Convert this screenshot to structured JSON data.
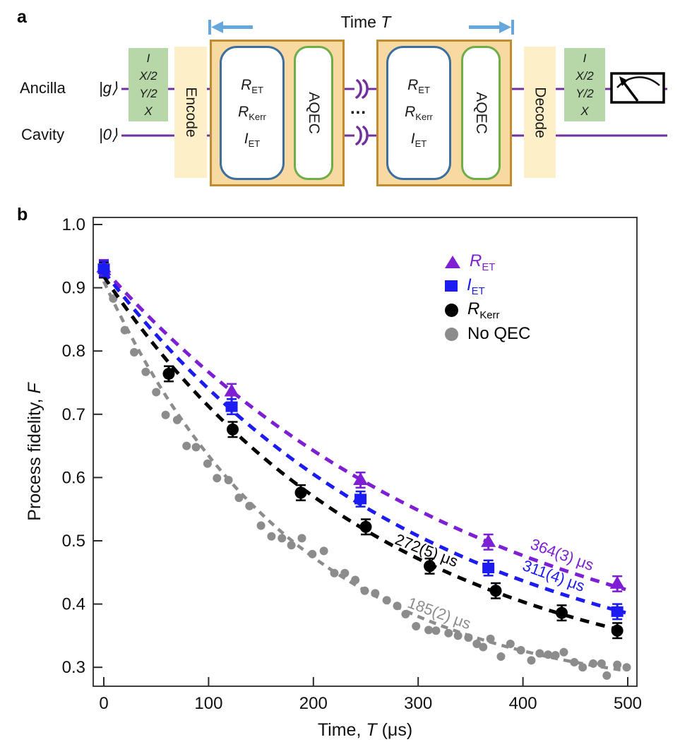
{
  "figure": {
    "panel_a_label": "a",
    "panel_b_label": "b"
  },
  "panel_a": {
    "rows": [
      {
        "label": "Ancilla",
        "ket": "|g⟩"
      },
      {
        "label": "Cavity",
        "ket": "|0⟩"
      }
    ],
    "tomo_gates": [
      "I",
      "X/2",
      "Y/2",
      "X"
    ],
    "encode_label": "Encode",
    "decode_label": "Decode",
    "module": {
      "gates": [
        {
          "main": "R",
          "sub": "ET"
        },
        {
          "main": "R",
          "sub": "Kerr"
        },
        {
          "main": "I",
          "sub": "ET"
        }
      ],
      "aqec_label": "AQEC"
    },
    "time_arrow": {
      "prefix": "Time",
      "symbol": "T"
    },
    "ellipsis": "...",
    "colors": {
      "wire": "#7030a0",
      "tomo_box": "#b7d7a8",
      "band_box": "#fdf0c9",
      "module_fill": "#f8d9a2",
      "module_border": "#bf8c2f",
      "gate_border": "#3c6e9e",
      "aqec_border": "#6fad47",
      "arrow": "#68a7dc"
    }
  },
  "chart_data": {
    "type": "scatter",
    "title": "",
    "xlabel": {
      "prefix": "Time, ",
      "symbol": "T",
      "unit": " (μs)"
    },
    "ylabel": {
      "prefix": "Process fidelity, ",
      "symbol": "F"
    },
    "xlim": [
      -10,
      509
    ],
    "ylim": [
      0.27,
      1.01
    ],
    "x_ticks": [
      0,
      100,
      200,
      300,
      400,
      500
    ],
    "y_ticks": [
      "1.0",
      "0.9",
      "0.8",
      "0.7",
      "0.6",
      "0.5",
      "0.4",
      "0.3"
    ],
    "grid": false,
    "legend_position": "upper-right-inside",
    "series": [
      {
        "name": "R_ET",
        "label_main": "R",
        "label_sub": "ET",
        "marker": "triangle",
        "color": "#7e1fd4",
        "label_color": "#7e1fd4",
        "decay_time_label": "364(3) μs",
        "fit": {
          "A": 0.68,
          "tau": 364,
          "offset": 0.25
        },
        "error_bar": 0.012,
        "points": [
          [
            0,
            0.932
          ],
          [
            122,
            0.736
          ],
          [
            245,
            0.596
          ],
          [
            367,
            0.498
          ],
          [
            490,
            0.432
          ]
        ]
      },
      {
        "name": "I_ET",
        "label_main": "I",
        "label_sub": "ET",
        "marker": "square",
        "color": "#1b1bf2",
        "label_color": "#1b1bf2",
        "decay_time_label": "311(4) μs",
        "fit": {
          "A": 0.676,
          "tau": 311,
          "offset": 0.25
        },
        "error_bar": 0.012,
        "points": [
          [
            0,
            0.93
          ],
          [
            122,
            0.712
          ],
          [
            245,
            0.566
          ],
          [
            367,
            0.457
          ],
          [
            490,
            0.388
          ]
        ]
      },
      {
        "name": "R_Kerr",
        "label_main": "R",
        "label_sub": "Kerr",
        "marker": "circle",
        "color": "#000000",
        "label_color": "#000000",
        "decay_time_label": "272(5) μs",
        "fit": {
          "A": 0.668,
          "tau": 272,
          "offset": 0.25
        },
        "error_bar": 0.012,
        "points": [
          [
            0,
            0.928
          ],
          [
            62,
            0.764
          ],
          [
            123,
            0.676
          ],
          [
            188,
            0.576
          ],
          [
            250,
            0.522
          ],
          [
            311,
            0.46
          ],
          [
            374,
            0.421
          ],
          [
            437,
            0.386
          ],
          [
            490,
            0.358
          ]
        ]
      },
      {
        "name": "No QEC",
        "label_main": "No QEC",
        "label_sub": "",
        "marker": "dot",
        "color": "#8c8c8c",
        "label_color": "#000000",
        "decay_time_label": "185(2) μs",
        "fit": {
          "A": 0.66,
          "tau": 185,
          "offset": 0.25
        },
        "error_bar": 0,
        "points": [
          [
            9,
            0.883
          ],
          [
            20,
            0.833
          ],
          [
            29,
            0.798
          ],
          [
            40,
            0.767
          ],
          [
            50,
            0.735
          ],
          [
            59,
            0.699
          ],
          [
            70,
            0.691
          ],
          [
            79,
            0.65
          ],
          [
            88,
            0.648
          ],
          [
            99,
            0.622
          ],
          [
            108,
            0.599
          ],
          [
            119,
            0.596
          ],
          [
            129,
            0.568
          ],
          [
            139,
            0.555
          ],
          [
            150,
            0.524
          ],
          [
            160,
            0.507
          ],
          [
            170,
            0.504
          ],
          [
            179,
            0.493
          ],
          [
            189,
            0.504
          ],
          [
            199,
            0.479
          ],
          [
            210,
            0.484
          ],
          [
            220,
            0.449
          ],
          [
            230,
            0.449
          ],
          [
            240,
            0.438
          ],
          [
            249,
            0.421
          ],
          [
            259,
            0.417
          ],
          [
            270,
            0.406
          ],
          [
            280,
            0.397
          ],
          [
            288,
            0.384
          ],
          [
            298,
            0.365
          ],
          [
            310,
            0.359
          ],
          [
            317,
            0.358
          ],
          [
            329,
            0.354
          ],
          [
            338,
            0.35
          ],
          [
            348,
            0.347
          ],
          [
            356,
            0.337
          ],
          [
            362,
            0.332
          ],
          [
            369,
            0.345
          ],
          [
            379,
            0.317
          ],
          [
            388,
            0.337
          ],
          [
            398,
            0.327
          ],
          [
            408,
            0.311
          ],
          [
            416,
            0.322
          ],
          [
            424,
            0.32
          ],
          [
            431,
            0.319
          ],
          [
            439,
            0.324
          ],
          [
            449,
            0.308
          ],
          [
            457,
            0.3
          ],
          [
            467,
            0.306
          ],
          [
            475,
            0.306
          ],
          [
            480,
            0.287
          ],
          [
            490,
            0.304
          ],
          [
            499,
            0.3
          ]
        ]
      }
    ],
    "annotations": [
      {
        "text": "364(3) μs",
        "color": "#7e1fd4",
        "t_us": 437,
        "f": 0.478,
        "angle_deg": 20
      },
      {
        "text": "311(4) μs",
        "color": "#1b1bf2",
        "t_us": 429,
        "f": 0.444,
        "angle_deg": 20
      },
      {
        "text": "272(5) μs",
        "color": "#000000",
        "t_us": 308,
        "f": 0.484,
        "angle_deg": 21
      },
      {
        "text": "185(2) μs",
        "color": "#8c8c8c",
        "t_us": 320,
        "f": 0.385,
        "angle_deg": 20
      }
    ]
  }
}
